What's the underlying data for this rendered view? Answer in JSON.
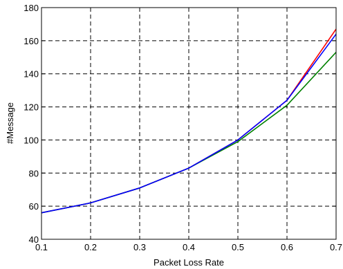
{
  "chart_data": {
    "type": "line",
    "title": "",
    "xlabel": "Packet Loss Rate",
    "ylabel": "#Message",
    "xlim": [
      0.1,
      0.7
    ],
    "ylim": [
      40,
      180
    ],
    "xticks": [
      0.1,
      0.2,
      0.3,
      0.4,
      0.5,
      0.6,
      0.7
    ],
    "xtick_labels": [
      "0.1",
      "0.2",
      "0.3",
      "0.4",
      "0.5",
      "0.6",
      "0.7"
    ],
    "yticks": [
      40,
      60,
      80,
      100,
      120,
      140,
      160,
      180
    ],
    "ytick_labels": [
      "40",
      "60",
      "80",
      "100",
      "120",
      "140",
      "160",
      "180"
    ],
    "grid": true,
    "grid_style": "dashed",
    "x": [
      0.1,
      0.2,
      0.3,
      0.4,
      0.5,
      0.6,
      0.7
    ],
    "series": [
      {
        "color": "#ff0000",
        "values": [
          56,
          62,
          71,
          83,
          100,
          124,
          167
        ]
      },
      {
        "color": "#008000",
        "values": [
          56,
          62,
          71,
          83,
          99,
          121,
          153
        ]
      },
      {
        "color": "#0000ff",
        "values": [
          56,
          62,
          71,
          83,
          100,
          124,
          164
        ]
      }
    ]
  }
}
